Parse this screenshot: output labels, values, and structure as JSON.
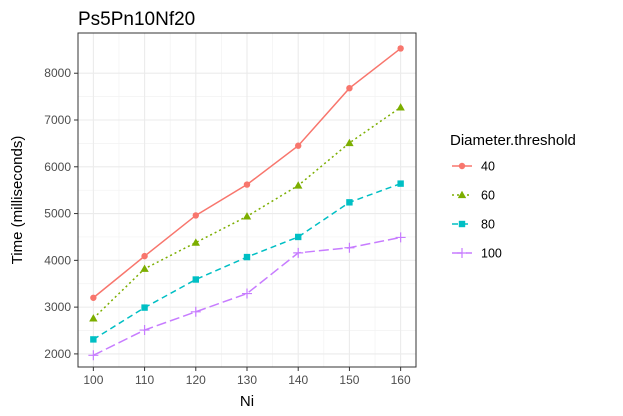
{
  "chart_data": {
    "type": "line",
    "title": "Ps5Pn10Nf20",
    "xlabel": "Ni",
    "ylabel": "Time (milliseconds)",
    "x": [
      100,
      110,
      120,
      130,
      140,
      150,
      160
    ],
    "xticks": [
      "100",
      "110",
      "120",
      "130",
      "140",
      "150",
      "160"
    ],
    "yticks": [
      "2000",
      "3000",
      "4000",
      "5000",
      "6000",
      "7000",
      "8000"
    ],
    "xlim": [
      97,
      163
    ],
    "ylim": [
      1720,
      8860
    ],
    "grid": true,
    "legend": {
      "title": "Diameter.threshold",
      "position": "right"
    },
    "series": [
      {
        "name": "40",
        "color": "#F8766D",
        "dash": "solid",
        "marker": "circle",
        "values": [
          3200,
          4090,
          4960,
          5620,
          6450,
          7680,
          8530
        ]
      },
      {
        "name": "60",
        "color": "#7CAE00",
        "dash": "dotted",
        "marker": "triangle",
        "values": [
          2760,
          3820,
          4380,
          4940,
          5600,
          6510,
          7270
        ]
      },
      {
        "name": "80",
        "color": "#00BFC4",
        "dash": "dashed",
        "marker": "square",
        "values": [
          2310,
          2990,
          3590,
          4070,
          4500,
          5240,
          5640
        ]
      },
      {
        "name": "100",
        "color": "#C77CFF",
        "dash": "longdash",
        "marker": "plus",
        "values": [
          1970,
          2510,
          2900,
          3290,
          4160,
          4270,
          4490
        ]
      }
    ]
  }
}
